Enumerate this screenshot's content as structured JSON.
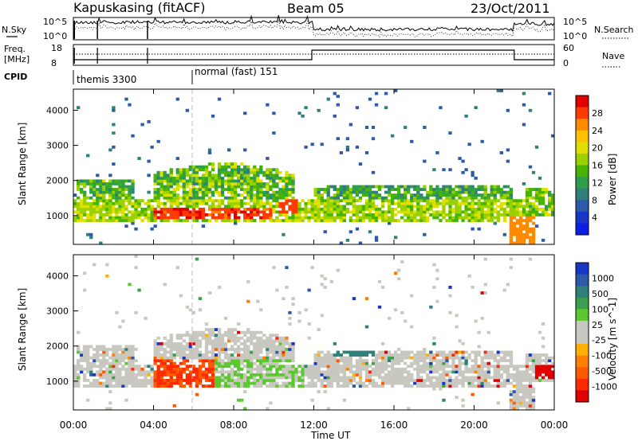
{
  "header": {
    "station": "Kapuskasing (fitACF)",
    "beam": "Beam 05",
    "date": "23/Oct/2011"
  },
  "panels": {
    "noise": {
      "label_left": "N.Sky",
      "label_right": "N.Search",
      "ticks_left": [
        "10^5",
        "10^0"
      ],
      "ticks_right": [
        "10^5",
        "10^0"
      ]
    },
    "freq": {
      "label_left_line1": "Freq.",
      "label_left_line2": "[MHz]",
      "label_right": "Nave",
      "ticks_left": [
        "18",
        "8"
      ],
      "ticks_right": [
        "60",
        "0"
      ]
    },
    "cpid": {
      "label": "CPID",
      "modes": [
        {
          "name": "themis 3300",
          "start_hour": 0.0
        },
        {
          "name": "normal (fast) 151",
          "start_hour": 6.0
        }
      ]
    }
  },
  "chart_data": [
    {
      "type": "heatmap",
      "title": "Power",
      "ylabel": "Slant Range [km]",
      "xlabel": "Time UT",
      "x_ticks": [
        "00:00",
        "04:00",
        "08:00",
        "12:00",
        "16:00",
        "20:00",
        "00:00"
      ],
      "y_ticks": [
        1000,
        2000,
        3000,
        4000
      ],
      "ylim": [
        180,
        4600
      ],
      "xlim_hours": [
        0,
        24
      ],
      "colorbar": {
        "label": "Power [dB]",
        "ticks": [
          "28",
          "24",
          "20",
          "16",
          "12",
          "8",
          "4"
        ],
        "colors": [
          "#e00000",
          "#ff3a00",
          "#ff8a00",
          "#ffc000",
          "#e0e000",
          "#9ad000",
          "#46b400",
          "#2e9e4a",
          "#2f7f7a",
          "#2c59a8",
          "#1a36c8",
          "#0a1ee8"
        ]
      }
    },
    {
      "type": "heatmap",
      "title": "Velocity",
      "ylabel": "Slant Range [km]",
      "xlabel": "Time UT",
      "x_ticks": [
        "00:00",
        "04:00",
        "08:00",
        "12:00",
        "16:00",
        "20:00",
        "00:00"
      ],
      "y_ticks": [
        1000,
        2000,
        3000,
        4000
      ],
      "ylim": [
        180,
        4600
      ],
      "xlim_hours": [
        0,
        24
      ],
      "colorbar": {
        "label": "Velocity [m s^-1]",
        "ticks": [
          "1000",
          "500",
          "100",
          "25",
          "-25",
          "-100",
          "-500",
          "-1000"
        ],
        "colors": [
          "#1a36c8",
          "#2c59a8",
          "#2f7f7a",
          "#3aa050",
          "#5cc830",
          "#c8c8c0",
          "#c8c8c0",
          "#ffb000",
          "#ff8000",
          "#ff5a00",
          "#ff2a00",
          "#e00000"
        ]
      }
    }
  ]
}
